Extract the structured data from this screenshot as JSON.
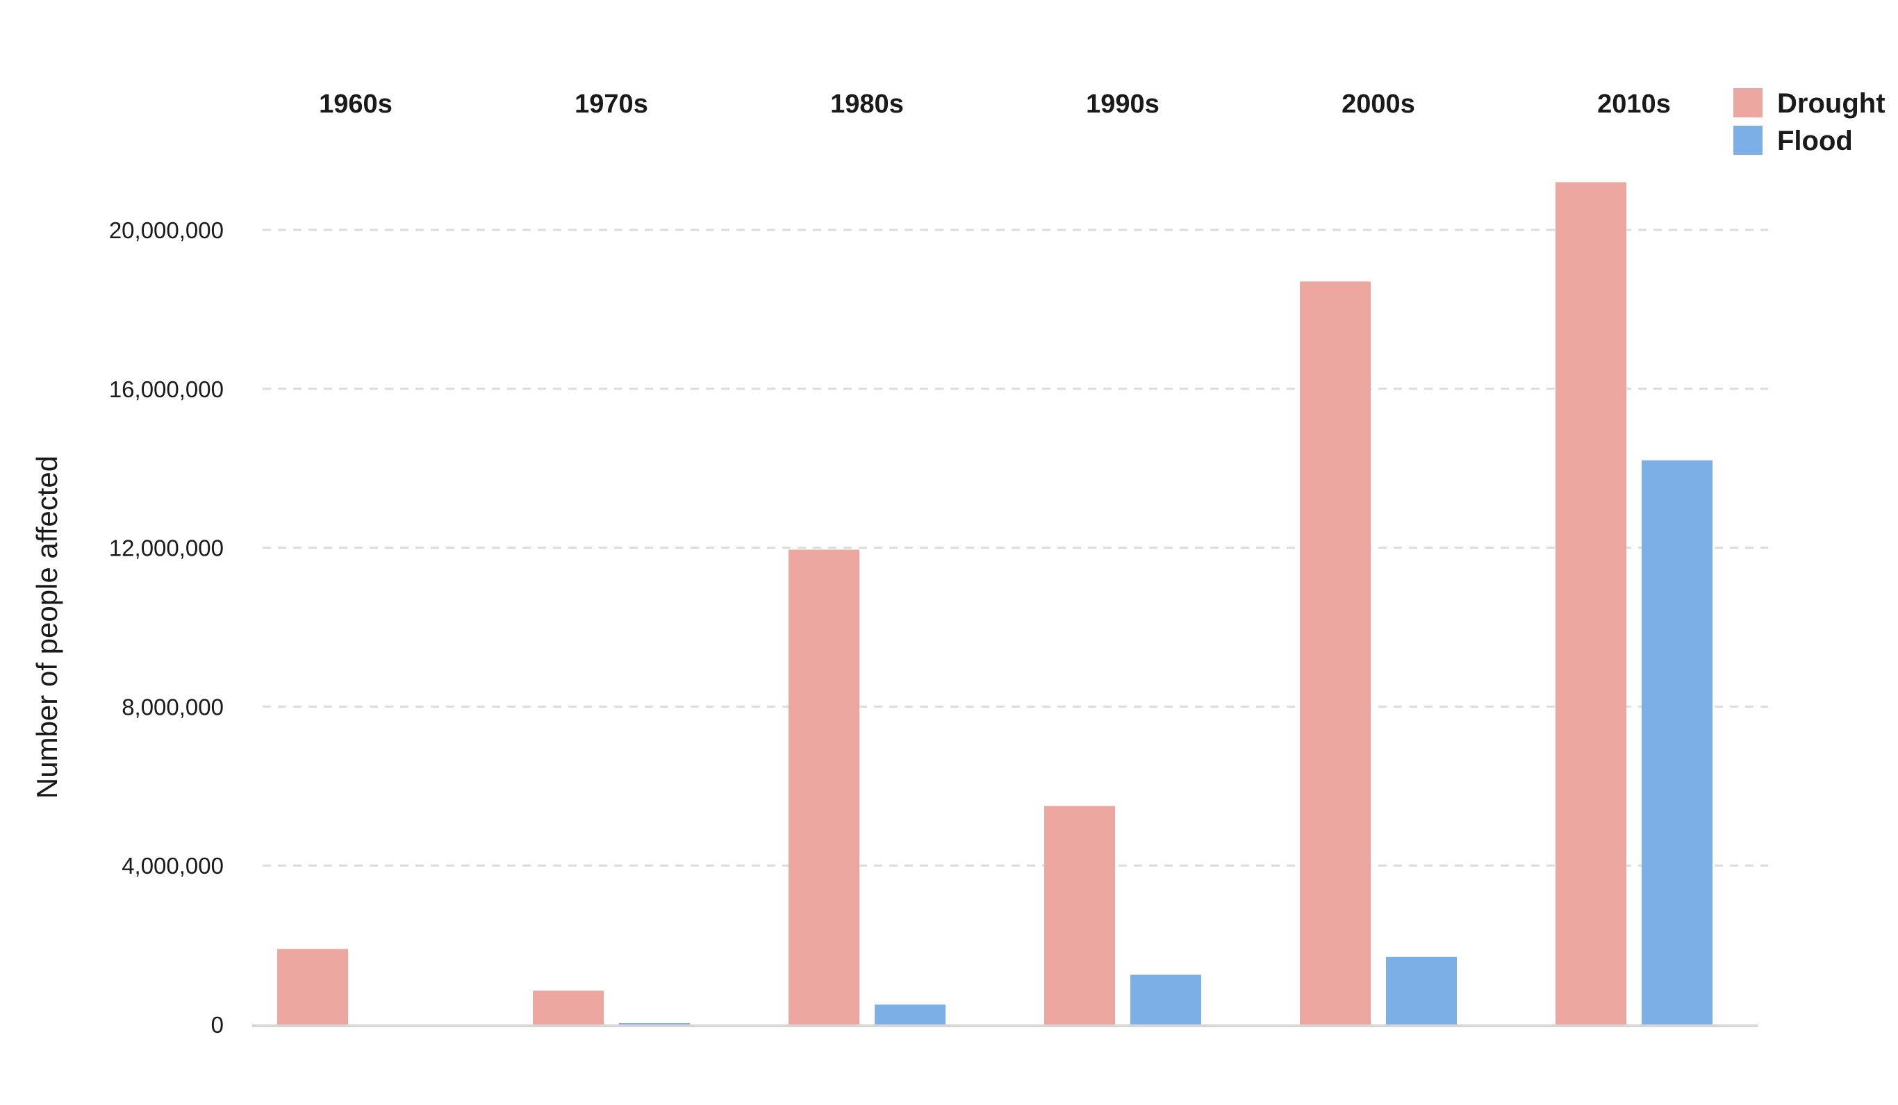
{
  "chart_data": {
    "type": "bar",
    "title": "",
    "xlabel": "",
    "ylabel": "Number of people affected",
    "categories": [
      "1960s",
      "1970s",
      "1980s",
      "1990s",
      "2000s",
      "2010s"
    ],
    "series": [
      {
        "name": "Drought",
        "color": "#EAA69F",
        "values": [
          1900000,
          850000,
          11950000,
          5500000,
          18700000,
          21200000
        ]
      },
      {
        "name": "Flood",
        "color": "#7BAFE6",
        "values": [
          0,
          30000,
          500000,
          1250000,
          1700000,
          14200000
        ]
      }
    ],
    "yticks": [
      0,
      4000000,
      8000000,
      12000000,
      16000000,
      20000000
    ],
    "ytick_labels": [
      "0",
      "4,000,000",
      "8,000,000",
      "12,000,000",
      "16,000,000",
      "20,000,000"
    ],
    "ylim": [
      0,
      20000000
    ],
    "grid": true,
    "legend_position": "top-right",
    "category_labels_position": "top"
  }
}
